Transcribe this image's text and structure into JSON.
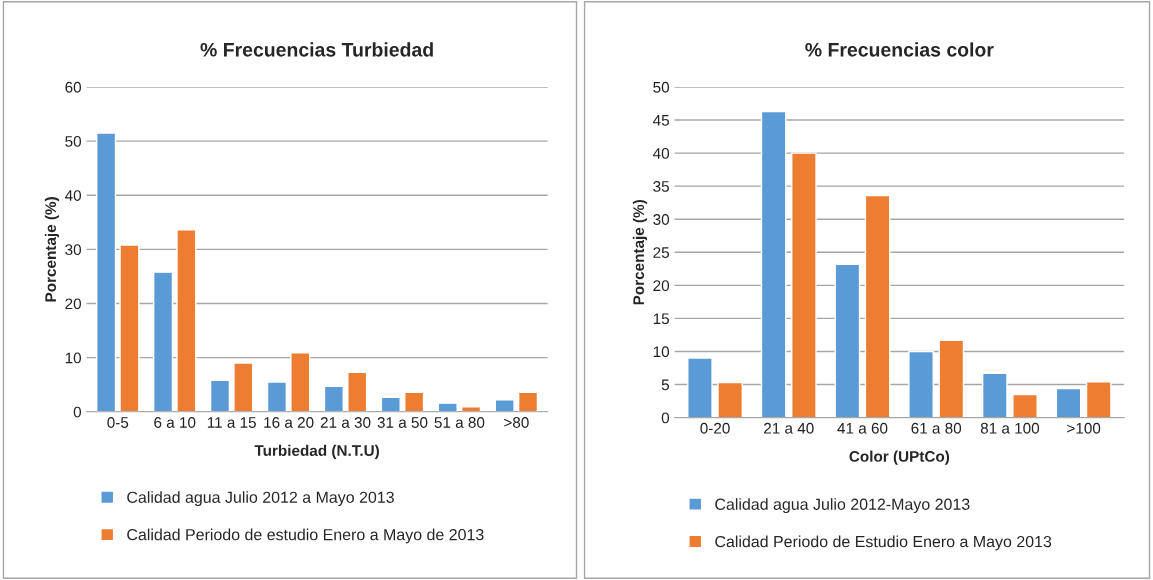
{
  "chart_data": [
    {
      "type": "bar",
      "title": "% Frecuencias Turbiedad",
      "xlabel": "Turbiedad (N.T.U)",
      "ylabel": "Porcentaje (%)",
      "categories": [
        "0-5",
        "6 a 10",
        "11 a 15",
        "16 a 20",
        "21 a 30",
        "31 a 50",
        "51 a 80",
        ">80"
      ],
      "series": [
        {
          "name": "Calidad agua Julio 2012 a Mayo 2013",
          "color": "#5b9bd5",
          "values": [
            51.5,
            25.8,
            5.8,
            5.5,
            4.7,
            2.7,
            1.6,
            2.2
          ]
        },
        {
          "name": "Calidad Periodo de estudio Enero a Mayo de 2013",
          "color": "#ed7d31",
          "values": [
            30.8,
            33.6,
            9.0,
            10.9,
            7.3,
            3.6,
            0.9,
            3.6
          ]
        }
      ],
      "ylim": [
        0,
        60
      ],
      "yticks": [
        0,
        10,
        20,
        30,
        40,
        50,
        60
      ],
      "grid": "y",
      "legend": "bottom"
    },
    {
      "type": "bar",
      "title": "% Frecuencias color",
      "xlabel": "Color (UPtCo)",
      "ylabel": "Porcentaje (%)",
      "categories": [
        "0-20",
        "21 a 40",
        "41 a 60",
        "61 a 80",
        "81 a 100",
        ">100"
      ],
      "series": [
        {
          "name": "Calidad agua Julio 2012-Mayo 2013",
          "color": "#5b9bd5",
          "values": [
            9.0,
            46.3,
            23.2,
            10.0,
            6.7,
            4.4
          ]
        },
        {
          "name": "Calidad Periodo de Estudio Enero a Mayo 2013",
          "color": "#ed7d31",
          "values": [
            5.3,
            40.0,
            33.6,
            11.7,
            3.5,
            5.4
          ]
        }
      ],
      "ylim": [
        0,
        50
      ],
      "yticks": [
        0,
        5,
        10,
        15,
        20,
        25,
        30,
        35,
        40,
        45,
        50
      ],
      "grid": "y",
      "legend": "bottom"
    }
  ]
}
